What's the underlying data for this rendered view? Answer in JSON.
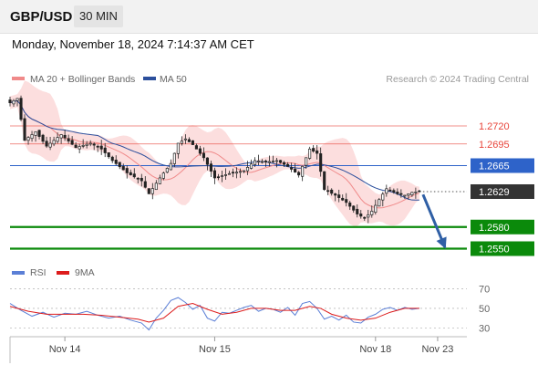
{
  "header": {
    "symbol": "GBP/USD",
    "timeframe": "30 MIN",
    "datetime": "Monday, November 18, 2024 7:14:37 AM CET"
  },
  "colors": {
    "bollinger": "#f08a8a",
    "band_fill": "#fcdede",
    "ma50": "#2c4f9c",
    "resistance": "#e8443a",
    "current": "#2e63c9",
    "support": "#0b8a0b",
    "price_box": "#333333",
    "arrow": "#2f5fa5",
    "rsi": "#5b7fd6",
    "rsi_ma": "#dd1c1c"
  },
  "chart_data": [
    {
      "type": "candlestick",
      "legend": [
        {
          "label": "MA 20 + Bollinger Bands",
          "color": "#f08a8a"
        },
        {
          "label": "MA 50",
          "color": "#2c4f9c"
        }
      ],
      "credit": "Research © 2024 Trading Central",
      "x_ticks": [
        "Nov 14",
        "Nov 15",
        "Nov 18",
        "Nov 23"
      ],
      "x_tick_index": [
        15,
        56,
        100,
        117
      ],
      "x_range": [
        0,
        125
      ],
      "ylim": [
        1.2538,
        1.2768
      ],
      "price_path": [
        [
          0,
          1.2752
        ],
        [
          2,
          1.2758
        ],
        [
          4,
          1.27
        ],
        [
          7,
          1.2712
        ],
        [
          10,
          1.2692
        ],
        [
          14,
          1.2708
        ],
        [
          18,
          1.269
        ],
        [
          22,
          1.2696
        ],
        [
          25,
          1.2688
        ],
        [
          28,
          1.2672
        ],
        [
          32,
          1.2655
        ],
        [
          36,
          1.2644
        ],
        [
          38,
          1.2626
        ],
        [
          41,
          1.2648
        ],
        [
          44,
          1.2668
        ],
        [
          46,
          1.2696
        ],
        [
          48,
          1.2702
        ],
        [
          50,
          1.2694
        ],
        [
          53,
          1.2676
        ],
        [
          56,
          1.2648
        ],
        [
          60,
          1.2654
        ],
        [
          64,
          1.2658
        ],
        [
          67,
          1.2672
        ],
        [
          70,
          1.267
        ],
        [
          73,
          1.2672
        ],
        [
          76,
          1.2664
        ],
        [
          79,
          1.2652
        ],
        [
          82,
          1.2688
        ],
        [
          84,
          1.2682
        ],
        [
          86,
          1.2632
        ],
        [
          89,
          1.2624
        ],
        [
          92,
          1.2614
        ],
        [
          95,
          1.2598
        ],
        [
          97,
          1.2592
        ],
        [
          99,
          1.2602
        ],
        [
          101,
          1.2618
        ],
        [
          103,
          1.2633
        ],
        [
          106,
          1.2626
        ],
        [
          108,
          1.2624
        ],
        [
          110,
          1.2628
        ],
        [
          112,
          1.2629
        ]
      ],
      "levels": [
        {
          "label": "1.2720",
          "value": 1.272,
          "kind": "resistance"
        },
        {
          "label": "1.2695",
          "value": 1.2695,
          "kind": "resistance"
        },
        {
          "label": "1.2665",
          "value": 1.2665,
          "kind": "pivot"
        },
        {
          "label": "1.2629",
          "value": 1.2629,
          "kind": "last"
        },
        {
          "label": "1.2580",
          "value": 1.258,
          "kind": "support"
        },
        {
          "label": "1.2550",
          "value": 1.255,
          "kind": "support"
        }
      ],
      "forecast_arrow": {
        "from": [
          113,
          1.2625
        ],
        "to": [
          119,
          1.2552
        ]
      }
    },
    {
      "type": "line",
      "legend": [
        {
          "label": "RSI",
          "color": "#5b7fd6"
        },
        {
          "label": "9MA",
          "color": "#dd1c1c"
        }
      ],
      "ylim": [
        22,
        76
      ],
      "y_ticks": [
        70,
        50,
        30
      ],
      "rsi": [
        [
          0,
          55
        ],
        [
          3,
          48
        ],
        [
          6,
          42
        ],
        [
          9,
          46
        ],
        [
          12,
          41
        ],
        [
          15,
          45
        ],
        [
          18,
          44
        ],
        [
          21,
          47
        ],
        [
          24,
          43
        ],
        [
          27,
          40
        ],
        [
          30,
          42
        ],
        [
          33,
          38
        ],
        [
          36,
          35
        ],
        [
          38,
          28
        ],
        [
          40,
          40
        ],
        [
          42,
          48
        ],
        [
          44,
          58
        ],
        [
          46,
          61
        ],
        [
          48,
          56
        ],
        [
          50,
          49
        ],
        [
          52,
          53
        ],
        [
          54,
          40
        ],
        [
          56,
          37
        ],
        [
          58,
          46
        ],
        [
          60,
          45
        ],
        [
          62,
          48
        ],
        [
          64,
          51
        ],
        [
          66,
          53
        ],
        [
          68,
          47
        ],
        [
          70,
          50
        ],
        [
          72,
          49
        ],
        [
          74,
          46
        ],
        [
          76,
          51
        ],
        [
          78,
          43
        ],
        [
          80,
          55
        ],
        [
          82,
          57
        ],
        [
          84,
          50
        ],
        [
          86,
          39
        ],
        [
          88,
          42
        ],
        [
          90,
          38
        ],
        [
          92,
          43
        ],
        [
          94,
          36
        ],
        [
          96,
          35
        ],
        [
          98,
          41
        ],
        [
          100,
          44
        ],
        [
          102,
          49
        ],
        [
          104,
          51
        ],
        [
          106,
          48
        ],
        [
          108,
          51
        ],
        [
          110,
          49
        ],
        [
          112,
          50
        ]
      ],
      "rsi_ma": [
        [
          0,
          52
        ],
        [
          5,
          47
        ],
        [
          10,
          44
        ],
        [
          15,
          44
        ],
        [
          20,
          44
        ],
        [
          25,
          43
        ],
        [
          30,
          41
        ],
        [
          35,
          39
        ],
        [
          38,
          36
        ],
        [
          42,
          40
        ],
        [
          46,
          52
        ],
        [
          50,
          55
        ],
        [
          54,
          49
        ],
        [
          58,
          44
        ],
        [
          62,
          46
        ],
        [
          66,
          50
        ],
        [
          70,
          50
        ],
        [
          74,
          48
        ],
        [
          78,
          48
        ],
        [
          82,
          52
        ],
        [
          85,
          50
        ],
        [
          88,
          44
        ],
        [
          92,
          40
        ],
        [
          96,
          38
        ],
        [
          100,
          40
        ],
        [
          104,
          46
        ],
        [
          108,
          50
        ],
        [
          112,
          50
        ]
      ]
    }
  ]
}
